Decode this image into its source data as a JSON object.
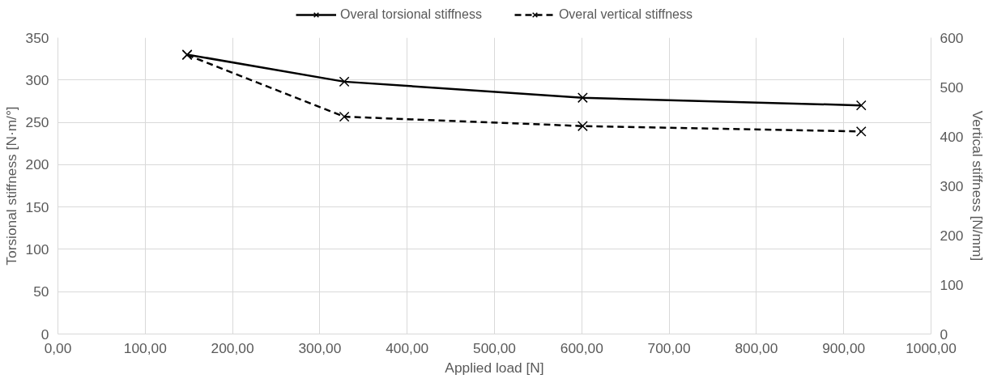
{
  "chart_data": {
    "type": "line",
    "xlabel": "Applied load [N]",
    "ylabel": "Torsional stiffness [N·m/°]",
    "y2label": "Vertical stiffness [N/mm]",
    "series": [
      {
        "name": "Overal torsional stiffness",
        "color": "#000000",
        "x": [
          148,
          328,
          601,
          920
        ],
        "values": [
          330,
          298,
          279,
          270
        ],
        "line_style": "solid"
      },
      {
        "name": "Overal vertical stiffness",
        "color": "#000000",
        "x": [
          148,
          328,
          601,
          920
        ],
        "values": [
          565,
          440,
          421,
          410
        ],
        "axis": "y2",
        "line_style": "dashed"
      }
    ],
    "marker": "cross",
    "xlim": [
      0,
      1000
    ],
    "xticks": [
      {
        "value": 0,
        "label": "0,00"
      },
      {
        "value": 100,
        "label": "100,00"
      },
      {
        "value": 200,
        "label": "200,00"
      },
      {
        "value": 300,
        "label": "300,00"
      },
      {
        "value": 400,
        "label": "400,00"
      },
      {
        "value": 500,
        "label": "500,00"
      },
      {
        "value": 600,
        "label": "600,00"
      },
      {
        "value": 700,
        "label": "700,00"
      },
      {
        "value": 800,
        "label": "800,00"
      },
      {
        "value": 900,
        "label": "900,00"
      },
      {
        "value": 1000,
        "label": "1000,00"
      }
    ],
    "ylim": [
      0,
      350
    ],
    "yticks": [
      0,
      50,
      100,
      150,
      200,
      250,
      300,
      350
    ],
    "y2lim": [
      0,
      600
    ],
    "y2ticks": [
      0,
      100,
      200,
      300,
      400,
      500,
      600
    ],
    "grid": true,
    "legend": "top"
  }
}
